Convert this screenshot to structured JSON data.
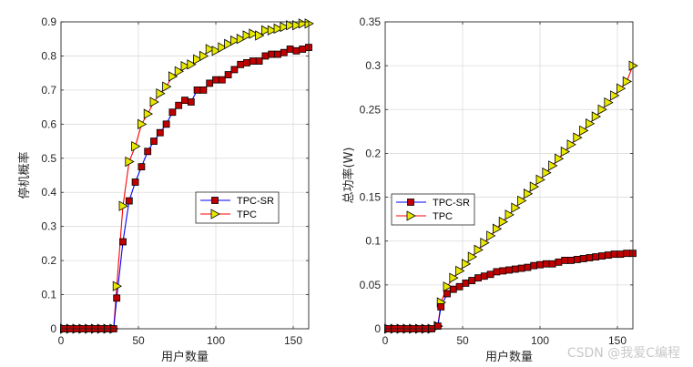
{
  "watermark": "CSDN @我爱C编程",
  "colors": {
    "blue": "#0000ff",
    "red": "#ff0000",
    "square_fill": "#c00000",
    "triangle_fill": "#e8e800"
  },
  "chart_data": [
    {
      "type": "line",
      "xlabel": "用户数量",
      "ylabel": "停机概率",
      "xlim": [
        0,
        160
      ],
      "ylim": [
        0,
        0.9
      ],
      "xticks": [
        0,
        50,
        100,
        150
      ],
      "yticks": [
        0,
        0.1,
        0.2,
        0.3,
        0.4,
        0.5,
        0.6,
        0.7,
        0.8,
        0.9
      ],
      "grid": true,
      "legend_location": "center-right",
      "x": [
        2,
        6,
        10,
        14,
        18,
        22,
        26,
        30,
        34,
        36,
        40,
        44,
        48,
        52,
        56,
        60,
        64,
        68,
        72,
        76,
        80,
        84,
        88,
        92,
        96,
        100,
        104,
        108,
        112,
        116,
        120,
        124,
        128,
        132,
        136,
        140,
        144,
        148,
        152,
        156,
        160
      ],
      "series": [
        {
          "name": "TPC-SR",
          "color": "#0000ff",
          "marker": "square",
          "values": [
            0,
            0,
            0,
            0,
            0,
            0,
            0,
            0,
            0,
            0.09,
            0.255,
            0.375,
            0.43,
            0.475,
            0.52,
            0.55,
            0.575,
            0.6,
            0.635,
            0.655,
            0.67,
            0.665,
            0.7,
            0.7,
            0.72,
            0.73,
            0.73,
            0.745,
            0.76,
            0.775,
            0.78,
            0.785,
            0.785,
            0.8,
            0.805,
            0.805,
            0.81,
            0.82,
            0.815,
            0.82,
            0.825
          ]
        },
        {
          "name": "TPC",
          "color": "#ff0000",
          "marker": "triangle-right",
          "values": [
            0,
            0,
            0,
            0,
            0,
            0,
            0,
            0,
            0,
            0.125,
            0.36,
            0.49,
            0.535,
            0.6,
            0.63,
            0.665,
            0.69,
            0.71,
            0.74,
            0.755,
            0.77,
            0.775,
            0.79,
            0.8,
            0.82,
            0.815,
            0.825,
            0.835,
            0.845,
            0.85,
            0.86,
            0.865,
            0.86,
            0.875,
            0.875,
            0.88,
            0.885,
            0.89,
            0.89,
            0.895,
            0.895
          ]
        }
      ]
    },
    {
      "type": "line",
      "xlabel": "用户数量",
      "ylabel": "总功率(W)",
      "xlim": [
        0,
        160
      ],
      "ylim": [
        0,
        0.35
      ],
      "xticks": [
        0,
        50,
        100,
        150
      ],
      "yticks": [
        0,
        0.05,
        0.1,
        0.15,
        0.2,
        0.25,
        0.3,
        0.35
      ],
      "grid": true,
      "legend_location": "center-left",
      "x": [
        2,
        6,
        10,
        14,
        18,
        22,
        26,
        30,
        34,
        36,
        40,
        44,
        48,
        52,
        56,
        60,
        64,
        68,
        72,
        76,
        80,
        84,
        88,
        92,
        96,
        100,
        104,
        108,
        112,
        116,
        120,
        124,
        128,
        132,
        136,
        140,
        144,
        148,
        152,
        156,
        160
      ],
      "series": [
        {
          "name": "TPC-SR",
          "color": "#0000ff",
          "marker": "square",
          "values": [
            0,
            0,
            0,
            0,
            0,
            0,
            0,
            0,
            0.003,
            0.025,
            0.04,
            0.045,
            0.048,
            0.052,
            0.055,
            0.058,
            0.06,
            0.062,
            0.065,
            0.066,
            0.067,
            0.068,
            0.069,
            0.07,
            0.072,
            0.073,
            0.074,
            0.074,
            0.076,
            0.078,
            0.078,
            0.079,
            0.08,
            0.081,
            0.082,
            0.083,
            0.084,
            0.085,
            0.085,
            0.086,
            0.086
          ]
        },
        {
          "name": "TPC",
          "color": "#ff0000",
          "marker": "triangle-right",
          "values": [
            0,
            0,
            0,
            0,
            0,
            0,
            0,
            0,
            0.003,
            0.03,
            0.048,
            0.058,
            0.066,
            0.074,
            0.082,
            0.09,
            0.098,
            0.106,
            0.114,
            0.122,
            0.13,
            0.138,
            0.146,
            0.154,
            0.162,
            0.17,
            0.178,
            0.186,
            0.194,
            0.202,
            0.21,
            0.218,
            0.226,
            0.234,
            0.242,
            0.25,
            0.258,
            0.266,
            0.274,
            0.282,
            0.3
          ]
        }
      ]
    }
  ]
}
